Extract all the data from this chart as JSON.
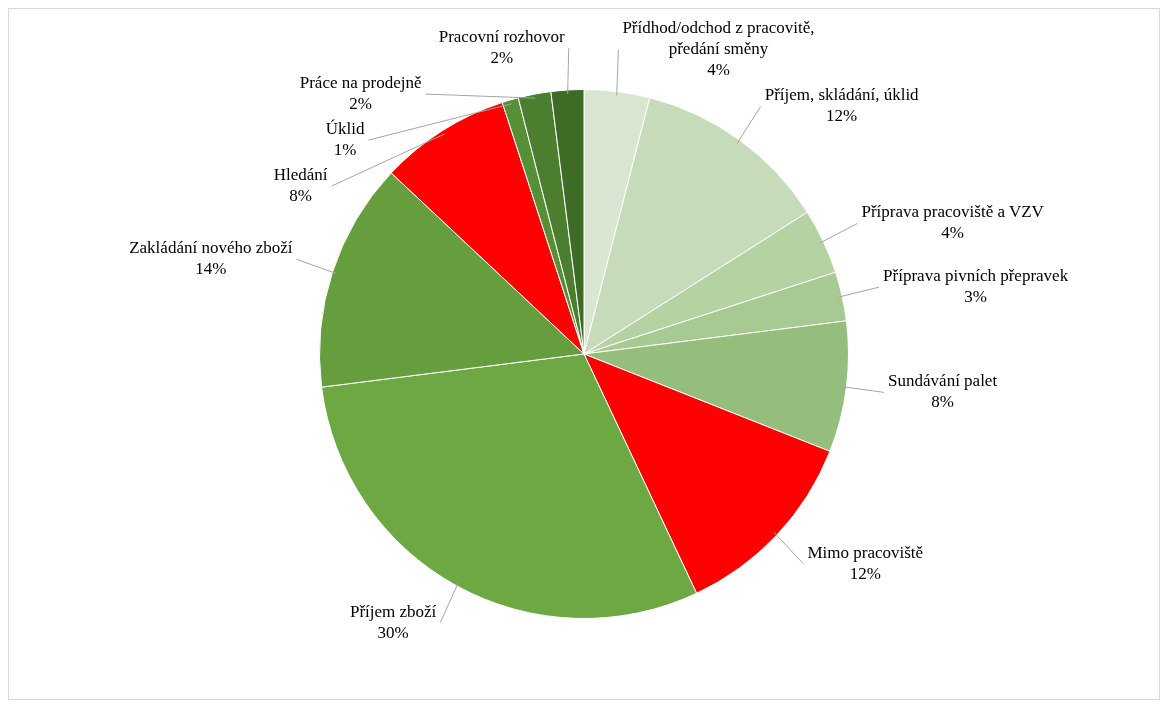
{
  "chart_data": {
    "type": "pie",
    "categories": [
      "Přídhod/odchod z pracovitě, předání směny",
      "Příjem, skládání, úklid",
      "Příprava pracoviště a VZV",
      "Příprava pivních přepravek",
      "Sundávání palet",
      "Mimo pracoviště",
      "Příjem zboží",
      "Zakládání nového zboží",
      "Hledání",
      "Úklid",
      "Práce na prodejně",
      "Pracovní rozhovor"
    ],
    "values": [
      4,
      12,
      4,
      3,
      8,
      12,
      30,
      14,
      8,
      1,
      2,
      2
    ],
    "value_labels": [
      "4%",
      "12%",
      "4%",
      "3%",
      "8%",
      "12%",
      "30%",
      "14%",
      "8%",
      "1%",
      "2%",
      "2%"
    ],
    "colors": [
      "#d9e6d2",
      "#c6dbb9",
      "#b5d2a3",
      "#a7ca92",
      "#95bd7b",
      "#ff0000",
      "#6ea842",
      "#669e3e",
      "#ff0000",
      "#568f36",
      "#4b7e2f",
      "#3e6c27"
    ],
    "legend": false
  }
}
